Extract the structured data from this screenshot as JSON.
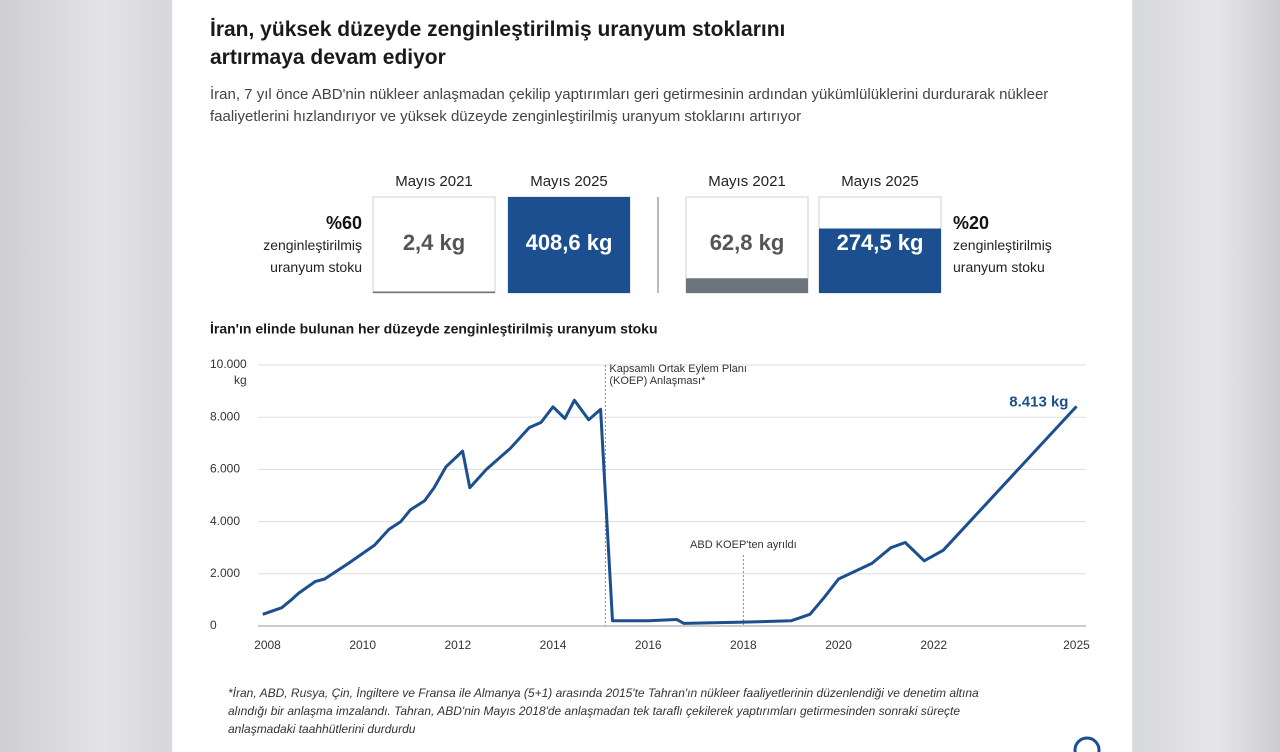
{
  "title": "İran, yüksek düzeyde zenginleştirilmiş uranyum stoklarını artırmaya devam ediyor",
  "subtitle": "İran, 7 yıl önce ABD'nin nükleer anlaşmadan çekilip yaptırımları geri getirmesinin ardından yükümlülüklerini durdurarak nükleer faaliyetlerini hızlandırıyor ve yüksek düzeyde zenginleştirilmiş uranyum stoklarını artırıyor",
  "comparison": {
    "groups": [
      {
        "label": "%60",
        "caption": "zenginleştirilmiş uranyum stoku",
        "items": [
          {
            "period": "Mayıs 2021",
            "value": 2.4,
            "value_label": "2,4 kg",
            "color": "#6c757d"
          },
          {
            "period": "Mayıs 2025",
            "value": 408.6,
            "value_label": "408,6 kg",
            "color": "#1b4f8f"
          }
        ]
      },
      {
        "label": "%20",
        "caption": "zenginleştirilmiş uranyum stoku",
        "items": [
          {
            "period": "Mayıs 2021",
            "value": 62.8,
            "value_label": "62,8 kg",
            "color": "#6c757d"
          },
          {
            "period": "Mayıs 2025",
            "value": 274.5,
            "value_label": "274,5 kg",
            "color": "#1b4f8f"
          }
        ]
      }
    ]
  },
  "chart_data": {
    "type": "line",
    "title": "İran'ın elinde bulunan her düzeyde zenginleştirilmiş uranyum stoku",
    "y_unit": "kg",
    "x": [
      2007.9,
      2008.3,
      2008.5,
      2008.65,
      2009.0,
      2009.2,
      2009.7,
      2010.25,
      2010.55,
      2010.8,
      2011.0,
      2011.3,
      2011.5,
      2011.75,
      2012.1,
      2012.25,
      2012.6,
      2013.1,
      2013.5,
      2013.75,
      2014.0,
      2014.25,
      2014.45,
      2014.75,
      2015.0,
      2015.25,
      2016.0,
      2016.6,
      2016.75,
      2018.0,
      2019.0,
      2019.4,
      2019.7,
      2020.0,
      2020.7,
      2021.1,
      2021.4,
      2021.8,
      2022.2,
      2025.0
    ],
    "series": [
      {
        "color": "#1b4f8f",
        "values": [
          450,
          700,
          1000,
          1250,
          1700,
          1800,
          2400,
          3100,
          3700,
          4000,
          4450,
          4800,
          5300,
          6100,
          6700,
          5300,
          6000,
          6800,
          7600,
          7800,
          8400,
          7950,
          8650,
          7900,
          8300,
          200,
          200,
          250,
          100,
          150,
          200,
          450,
          1100,
          1800,
          2400,
          3000,
          3200,
          2500,
          2900,
          8413
        ],
        "value_labels": {
          "39": "8.413 kg"
        }
      }
    ],
    "xlim": [
      2007.8,
      2025.2
    ],
    "xticks": [
      2008,
      2010,
      2012,
      2014,
      2016,
      2018,
      2020,
      2022,
      2025
    ],
    "ylim": [
      0,
      10000
    ],
    "yticks": [
      0,
      {
        "value": 2000,
        "label": "2.000"
      },
      {
        "value": 4000,
        "label": "4.000"
      },
      {
        "value": 6000,
        "label": "6.000"
      },
      {
        "value": 8000,
        "label": "8.000"
      },
      {
        "value": 10000,
        "label": "10.000"
      }
    ],
    "grid": true,
    "annotations": [
      {
        "text": "Kapsamlı Ortak Eylem Planı (KOEP) Anlaşması*",
        "x": 2015.1
      },
      {
        "text": "ABD KOEP'ten ayrıldı",
        "x": 2018.0
      }
    ]
  },
  "footnote": "*İran, ABD, Rusya, Çin, İngiltere ve Fransa ile Almanya (5+1) arasında 2015'te Tahran'ın nükleer faaliyetlerinin düzenlendiği ve denetim altına alındığı bir anlaşma imzalandı. Tahran, ABD'nin Mayıs 2018'de anlaşmadan tek taraflı çekilerek yaptırımları getirmesinden sonraki süreçte anlaşmadaki taahhütlerini durdurdu"
}
